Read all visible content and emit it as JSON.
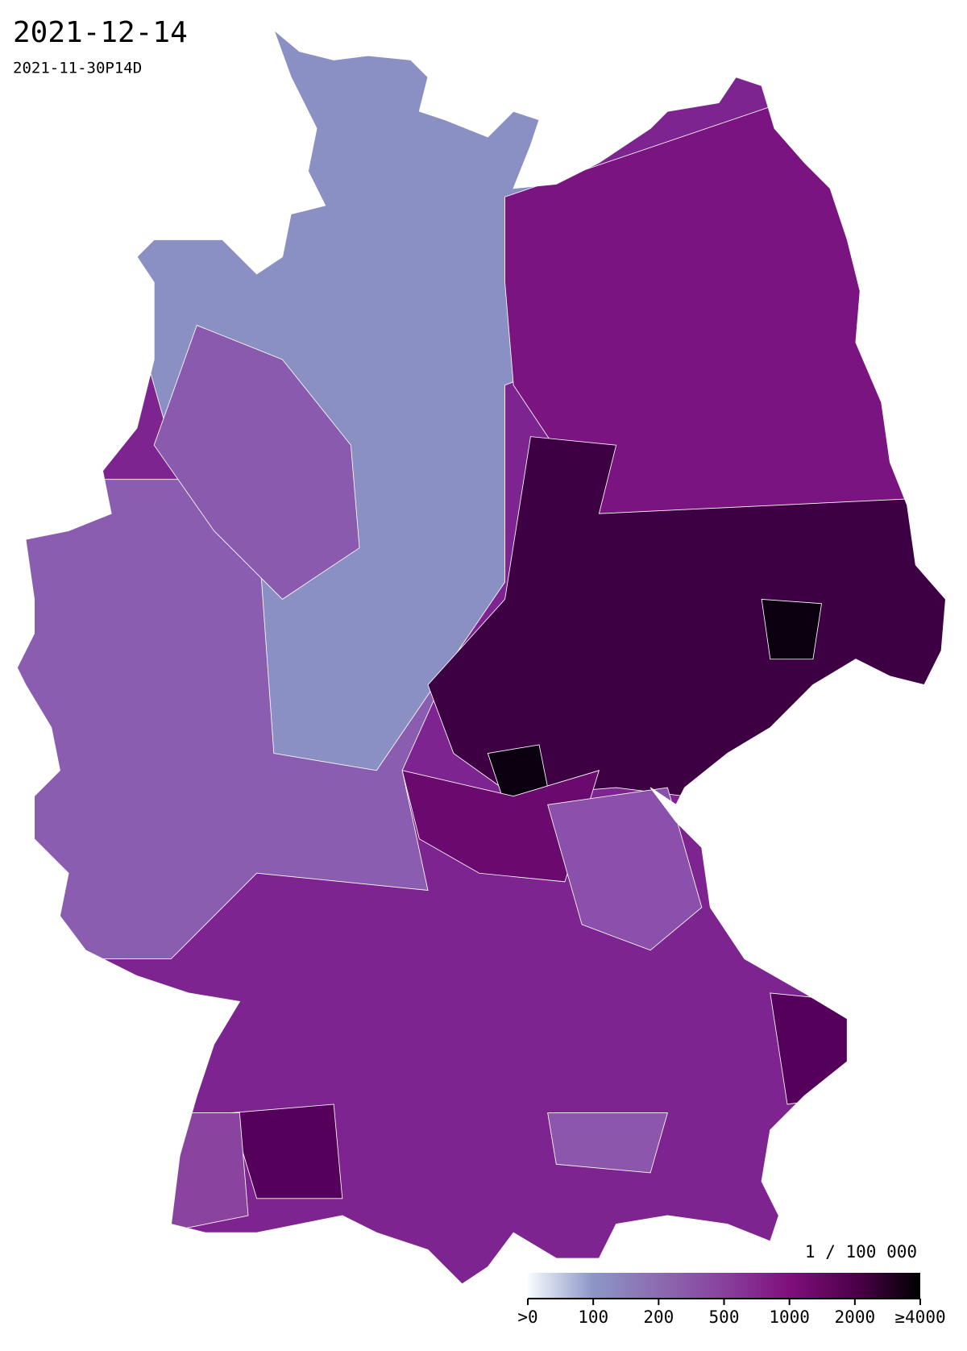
{
  "title": "2021-12-14",
  "subtitle": "2021-11-30P14D",
  "colorbar": {
    "label": "1 / 100 000",
    "ticks": [
      {
        "value": 0,
        "label": ">0"
      },
      100,
      200,
      500,
      1000,
      2000,
      {
        "value": 4000,
        "label": "≥4000"
      }
    ],
    "colors": [
      "#f7fcfd",
      "#8c96c6",
      "#8c6bb1",
      "#88419d",
      "#810f7c",
      "#4d004b",
      "#000000"
    ]
  }
}
